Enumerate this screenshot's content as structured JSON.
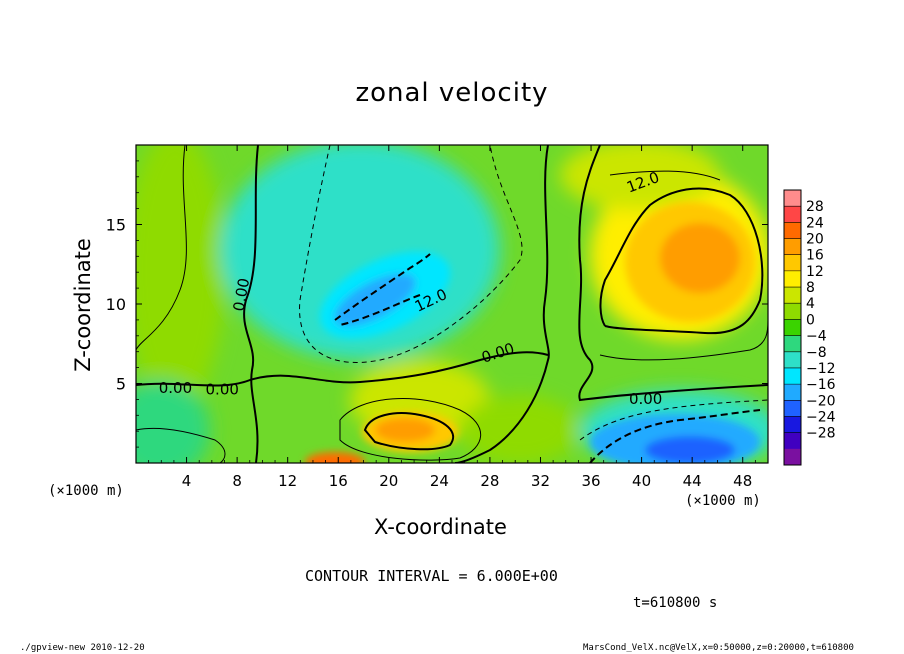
{
  "chart_data": {
    "type": "heatmap",
    "title": "zonal velocity",
    "xlabel": "X-coordinate",
    "ylabel": "Z-coordinate",
    "x_unit_label": "(×1000 m)",
    "x_ticks": [
      4,
      8,
      12,
      16,
      20,
      24,
      28,
      32,
      36,
      40,
      44,
      48
    ],
    "y_ticks": [
      5,
      10,
      15
    ],
    "xlim": [
      0,
      50
    ],
    "ylim": [
      0,
      20
    ],
    "colorbar": {
      "labels": [
        28,
        24,
        20,
        16,
        12,
        8,
        4,
        0,
        -4,
        -8,
        -12,
        -16,
        -20,
        -24,
        -28
      ],
      "colors": [
        "#ff8c8c",
        "#ff4646",
        "#ff6a00",
        "#ff9d00",
        "#ffc800",
        "#ffee00",
        "#cbe600",
        "#8fdb00",
        "#3ad300",
        "#2ed87e",
        "#2ee0c8",
        "#00e6ff",
        "#20aaff",
        "#1f62ff",
        "#1818e0",
        "#4000c0",
        "#7a10a0"
      ]
    },
    "contour_labels": [
      "12.0",
      "12.0",
      "0.00",
      "0.00",
      "0.00",
      "0.00",
      "0.00"
    ],
    "contour_interval_text": "CONTOUR INTERVAL = 6.000E+00",
    "time_text": "t=610800 s",
    "features": [
      {
        "name": "negative core",
        "x": 21,
        "z": 11,
        "value": -13
      },
      {
        "name": "positive core",
        "x": 44,
        "z": 13,
        "value": 14
      },
      {
        "name": "negative near-surface core",
        "x": 44,
        "z": 1.5,
        "value": -16
      },
      {
        "name": "positive near-surface core",
        "x": 21,
        "z": 2,
        "value": 12
      },
      {
        "name": "positive surface spot",
        "x": 16,
        "z": 0.4,
        "value": 15
      }
    ]
  },
  "footer": {
    "left": "./gpview-new  2010-12-20",
    "right": "MarsCond_VelX.nc@VelX,x=0:50000,z=0:20000,t=610800"
  }
}
